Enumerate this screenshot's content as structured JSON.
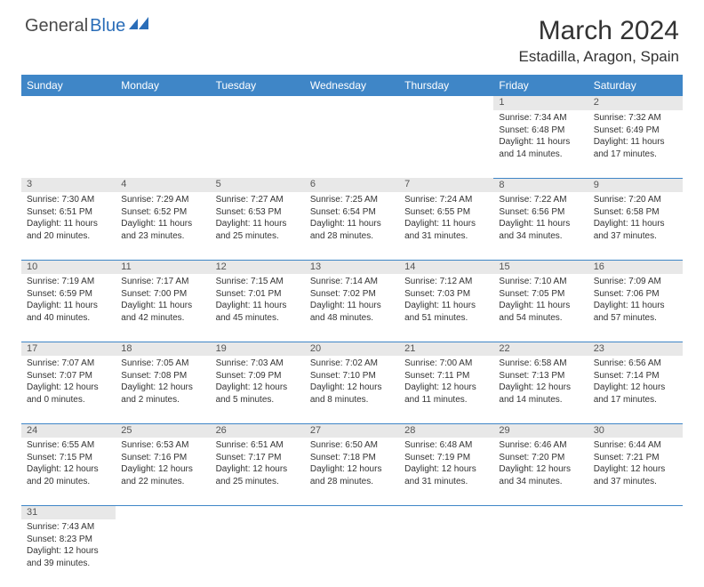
{
  "logo": {
    "part1": "General",
    "part2": "Blue"
  },
  "title": "March 2024",
  "location": "Estadilla, Aragon, Spain",
  "colors": {
    "header_bg": "#3f86c7",
    "header_text": "#ffffff",
    "daynum_bg": "#e8e8e8",
    "border": "#3f86c7",
    "text": "#333333",
    "logo_gray": "#4a4a4a",
    "logo_blue": "#2a6db8"
  },
  "weekdays": [
    "Sunday",
    "Monday",
    "Tuesday",
    "Wednesday",
    "Thursday",
    "Friday",
    "Saturday"
  ],
  "weeks": [
    [
      null,
      null,
      null,
      null,
      null,
      {
        "n": "1",
        "sunrise": "7:34 AM",
        "sunset": "6:48 PM",
        "day_h": 11,
        "day_m": 14
      },
      {
        "n": "2",
        "sunrise": "7:32 AM",
        "sunset": "6:49 PM",
        "day_h": 11,
        "day_m": 17
      }
    ],
    [
      {
        "n": "3",
        "sunrise": "7:30 AM",
        "sunset": "6:51 PM",
        "day_h": 11,
        "day_m": 20
      },
      {
        "n": "4",
        "sunrise": "7:29 AM",
        "sunset": "6:52 PM",
        "day_h": 11,
        "day_m": 23
      },
      {
        "n": "5",
        "sunrise": "7:27 AM",
        "sunset": "6:53 PM",
        "day_h": 11,
        "day_m": 25
      },
      {
        "n": "6",
        "sunrise": "7:25 AM",
        "sunset": "6:54 PM",
        "day_h": 11,
        "day_m": 28
      },
      {
        "n": "7",
        "sunrise": "7:24 AM",
        "sunset": "6:55 PM",
        "day_h": 11,
        "day_m": 31
      },
      {
        "n": "8",
        "sunrise": "7:22 AM",
        "sunset": "6:56 PM",
        "day_h": 11,
        "day_m": 34
      },
      {
        "n": "9",
        "sunrise": "7:20 AM",
        "sunset": "6:58 PM",
        "day_h": 11,
        "day_m": 37
      }
    ],
    [
      {
        "n": "10",
        "sunrise": "7:19 AM",
        "sunset": "6:59 PM",
        "day_h": 11,
        "day_m": 40
      },
      {
        "n": "11",
        "sunrise": "7:17 AM",
        "sunset": "7:00 PM",
        "day_h": 11,
        "day_m": 42
      },
      {
        "n": "12",
        "sunrise": "7:15 AM",
        "sunset": "7:01 PM",
        "day_h": 11,
        "day_m": 45
      },
      {
        "n": "13",
        "sunrise": "7:14 AM",
        "sunset": "7:02 PM",
        "day_h": 11,
        "day_m": 48
      },
      {
        "n": "14",
        "sunrise": "7:12 AM",
        "sunset": "7:03 PM",
        "day_h": 11,
        "day_m": 51
      },
      {
        "n": "15",
        "sunrise": "7:10 AM",
        "sunset": "7:05 PM",
        "day_h": 11,
        "day_m": 54
      },
      {
        "n": "16",
        "sunrise": "7:09 AM",
        "sunset": "7:06 PM",
        "day_h": 11,
        "day_m": 57
      }
    ],
    [
      {
        "n": "17",
        "sunrise": "7:07 AM",
        "sunset": "7:07 PM",
        "day_h": 12,
        "day_m": 0
      },
      {
        "n": "18",
        "sunrise": "7:05 AM",
        "sunset": "7:08 PM",
        "day_h": 12,
        "day_m": 2
      },
      {
        "n": "19",
        "sunrise": "7:03 AM",
        "sunset": "7:09 PM",
        "day_h": 12,
        "day_m": 5
      },
      {
        "n": "20",
        "sunrise": "7:02 AM",
        "sunset": "7:10 PM",
        "day_h": 12,
        "day_m": 8
      },
      {
        "n": "21",
        "sunrise": "7:00 AM",
        "sunset": "7:11 PM",
        "day_h": 12,
        "day_m": 11
      },
      {
        "n": "22",
        "sunrise": "6:58 AM",
        "sunset": "7:13 PM",
        "day_h": 12,
        "day_m": 14
      },
      {
        "n": "23",
        "sunrise": "6:56 AM",
        "sunset": "7:14 PM",
        "day_h": 12,
        "day_m": 17
      }
    ],
    [
      {
        "n": "24",
        "sunrise": "6:55 AM",
        "sunset": "7:15 PM",
        "day_h": 12,
        "day_m": 20
      },
      {
        "n": "25",
        "sunrise": "6:53 AM",
        "sunset": "7:16 PM",
        "day_h": 12,
        "day_m": 22
      },
      {
        "n": "26",
        "sunrise": "6:51 AM",
        "sunset": "7:17 PM",
        "day_h": 12,
        "day_m": 25
      },
      {
        "n": "27",
        "sunrise": "6:50 AM",
        "sunset": "7:18 PM",
        "day_h": 12,
        "day_m": 28
      },
      {
        "n": "28",
        "sunrise": "6:48 AM",
        "sunset": "7:19 PM",
        "day_h": 12,
        "day_m": 31
      },
      {
        "n": "29",
        "sunrise": "6:46 AM",
        "sunset": "7:20 PM",
        "day_h": 12,
        "day_m": 34
      },
      {
        "n": "30",
        "sunrise": "6:44 AM",
        "sunset": "7:21 PM",
        "day_h": 12,
        "day_m": 37
      }
    ],
    [
      {
        "n": "31",
        "sunrise": "7:43 AM",
        "sunset": "8:23 PM",
        "day_h": 12,
        "day_m": 39
      },
      null,
      null,
      null,
      null,
      null,
      null
    ]
  ],
  "labels": {
    "sunrise": "Sunrise:",
    "sunset": "Sunset:",
    "daylight": "Daylight:",
    "hours": "hours",
    "and": "and",
    "minutes": "minutes."
  }
}
